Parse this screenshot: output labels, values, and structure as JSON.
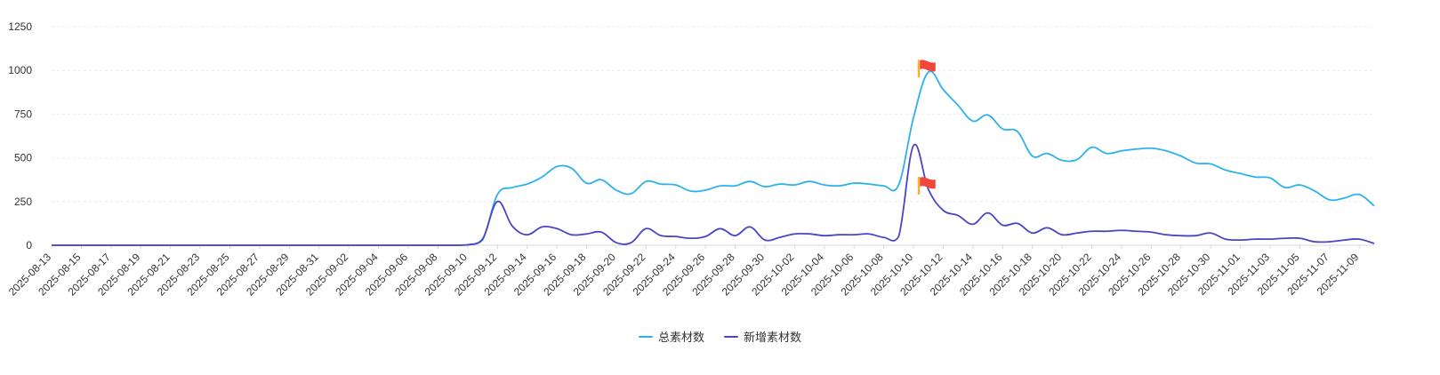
{
  "chart_data": {
    "type": "line",
    "title": "",
    "xlabel": "",
    "ylabel": "",
    "ylim": [
      0,
      1250
    ],
    "yticks": [
      0,
      250,
      500,
      750,
      1000,
      1250
    ],
    "grid": "horizontal-dashed",
    "legend_position": "bottom-center",
    "x": [
      "2025-08-13",
      "2025-08-14",
      "2025-08-15",
      "2025-08-16",
      "2025-08-17",
      "2025-08-18",
      "2025-08-19",
      "2025-08-20",
      "2025-08-21",
      "2025-08-22",
      "2025-08-23",
      "2025-08-24",
      "2025-08-25",
      "2025-08-26",
      "2025-08-27",
      "2025-08-28",
      "2025-08-29",
      "2025-08-30",
      "2025-08-31",
      "2025-09-01",
      "2025-09-02",
      "2025-09-03",
      "2025-09-04",
      "2025-09-05",
      "2025-09-06",
      "2025-09-07",
      "2025-09-08",
      "2025-09-09",
      "2025-09-10",
      "2025-09-11",
      "2025-09-12",
      "2025-09-13",
      "2025-09-14",
      "2025-09-15",
      "2025-09-16",
      "2025-09-17",
      "2025-09-18",
      "2025-09-19",
      "2025-09-20",
      "2025-09-21",
      "2025-09-22",
      "2025-09-23",
      "2025-09-24",
      "2025-09-25",
      "2025-09-26",
      "2025-09-27",
      "2025-09-28",
      "2025-09-29",
      "2025-09-30",
      "2025-10-01",
      "2025-10-02",
      "2025-10-03",
      "2025-10-04",
      "2025-10-05",
      "2025-10-06",
      "2025-10-07",
      "2025-10-08",
      "2025-10-09",
      "2025-10-10",
      "2025-10-11",
      "2025-10-12",
      "2025-10-13",
      "2025-10-14",
      "2025-10-15",
      "2025-10-16",
      "2025-10-17",
      "2025-10-18",
      "2025-10-19",
      "2025-10-20",
      "2025-10-21",
      "2025-10-22",
      "2025-10-23",
      "2025-10-24",
      "2025-10-25",
      "2025-10-26",
      "2025-10-27",
      "2025-10-28",
      "2025-10-29",
      "2025-10-30",
      "2025-10-31",
      "2025-11-01",
      "2025-11-02",
      "2025-11-03",
      "2025-11-04",
      "2025-11-05",
      "2025-11-06",
      "2025-11-07",
      "2025-11-08",
      "2025-11-09",
      "2025-11-10"
    ],
    "tick_labels": [
      "2025-08-13",
      "2025-08-15",
      "2025-08-17",
      "2025-08-19",
      "2025-08-21",
      "2025-08-23",
      "2025-08-25",
      "2025-08-27",
      "2025-08-29",
      "2025-08-31",
      "2025-09-02",
      "2025-09-04",
      "2025-09-06",
      "2025-09-08",
      "2025-09-10",
      "2025-09-12",
      "2025-09-14",
      "2025-09-16",
      "2025-09-18",
      "2025-09-20",
      "2025-09-22",
      "2025-09-24",
      "2025-09-26",
      "2025-09-28",
      "2025-09-30",
      "2025-10-02",
      "2025-10-04",
      "2025-10-06",
      "2025-10-08",
      "2025-10-10",
      "2025-10-12",
      "2025-10-14",
      "2025-10-16",
      "2025-10-18",
      "2025-10-20",
      "2025-10-22",
      "2025-10-24",
      "2025-10-26",
      "2025-10-28",
      "2025-10-30",
      "2025-11-01",
      "2025-11-03",
      "2025-11-05",
      "2025-11-07",
      "2025-11-09"
    ],
    "series": [
      {
        "name": "总素材数",
        "color": "#2db1ed",
        "values": [
          0,
          0,
          0,
          0,
          0,
          0,
          0,
          0,
          0,
          0,
          0,
          0,
          0,
          0,
          0,
          0,
          0,
          0,
          0,
          0,
          0,
          0,
          0,
          0,
          0,
          0,
          0,
          0,
          3,
          30,
          290,
          330,
          350,
          390,
          450,
          440,
          355,
          375,
          315,
          295,
          365,
          350,
          345,
          310,
          315,
          340,
          340,
          365,
          335,
          350,
          345,
          365,
          345,
          340,
          355,
          350,
          340,
          345,
          730,
          990,
          890,
          800,
          710,
          745,
          665,
          650,
          510,
          525,
          485,
          490,
          560,
          525,
          540,
          550,
          555,
          540,
          510,
          470,
          465,
          430,
          410,
          390,
          385,
          330,
          345,
          310,
          260,
          270,
          290,
          225
        ],
        "flag_on": "2025-10-11"
      },
      {
        "name": "新增素材数",
        "color": "#4c44c2",
        "values": [
          0,
          0,
          0,
          0,
          0,
          0,
          0,
          0,
          0,
          0,
          0,
          0,
          0,
          0,
          0,
          0,
          0,
          0,
          0,
          0,
          0,
          0,
          0,
          0,
          0,
          0,
          0,
          0,
          2,
          35,
          250,
          110,
          60,
          105,
          95,
          60,
          65,
          75,
          15,
          15,
          95,
          55,
          50,
          40,
          50,
          95,
          55,
          105,
          30,
          45,
          65,
          65,
          55,
          60,
          60,
          65,
          45,
          50,
          570,
          320,
          200,
          170,
          120,
          185,
          115,
          125,
          70,
          100,
          60,
          70,
          80,
          80,
          85,
          80,
          75,
          60,
          55,
          55,
          70,
          35,
          30,
          35,
          35,
          40,
          40,
          20,
          20,
          30,
          35,
          10
        ],
        "flag_on": "2025-10-11"
      }
    ]
  }
}
